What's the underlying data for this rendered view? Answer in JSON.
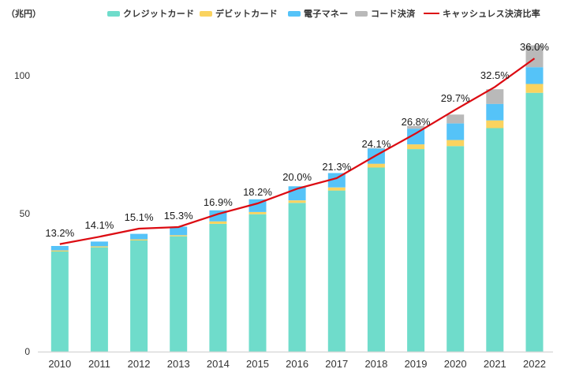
{
  "unit_label": "（兆円）",
  "legend": {
    "items": [
      {
        "label": "クレジットカード",
        "color": "#6FDCCB",
        "swatch": "box"
      },
      {
        "label": "デビットカード",
        "color": "#FAD35F",
        "swatch": "box"
      },
      {
        "label": "電子マネー",
        "color": "#55C3F8",
        "swatch": "box"
      },
      {
        "label": "コード決済",
        "color": "#B9B9B9",
        "swatch": "box"
      },
      {
        "label": "キャッシュレス決済比率",
        "color": "#DC0B12",
        "swatch": "line"
      }
    ]
  },
  "y_axis": {
    "unit": "兆円",
    "ticks": [
      0,
      50,
      100
    ],
    "max": 115
  },
  "x_axis": {
    "tick_labels": [
      "2010",
      "2011",
      "2012",
      "2013",
      "2014",
      "2015",
      "2016",
      "2017",
      "2018",
      "2019",
      "2020",
      "2021",
      "2022"
    ]
  },
  "colors": {
    "credit": "#6FDCCB",
    "debit": "#FAD35F",
    "emoney": "#55C3F8",
    "code": "#B9B9B9",
    "ratio_line": "#DC0B12",
    "axis_line": "#D9D9D9",
    "text": "#333333"
  },
  "chart_data": {
    "type": "bar",
    "subtype": "stacked-bars-with-line-overlay",
    "title": "",
    "categories": [
      "2010",
      "2011",
      "2012",
      "2013",
      "2014",
      "2015",
      "2016",
      "2017",
      "2018",
      "2019",
      "2020",
      "2021",
      "2022"
    ],
    "series": [
      {
        "key": "credit",
        "name": "クレジットカード",
        "color": "#6FDCCB",
        "values": [
          36.3,
          37.8,
          40.3,
          41.8,
          46.3,
          49.8,
          53.9,
          58.4,
          66.7,
          73.4,
          74.5,
          81.0,
          93.8
        ]
      },
      {
        "key": "debit",
        "name": "デビットカード",
        "color": "#FAD35F",
        "values": [
          0.4,
          0.4,
          0.4,
          0.4,
          0.9,
          0.8,
          0.9,
          1.1,
          1.4,
          1.7,
          2.2,
          2.8,
          3.2
        ]
      },
      {
        "key": "emoney",
        "name": "電子マネー",
        "color": "#55C3F8",
        "values": [
          1.6,
          1.7,
          2.0,
          3.1,
          4.0,
          4.6,
          5.1,
          5.2,
          5.5,
          5.7,
          6.0,
          6.0,
          6.1
        ]
      },
      {
        "key": "code",
        "name": "コード決済",
        "color": "#B9B9B9",
        "values": [
          0,
          0,
          0,
          0,
          0,
          0,
          0,
          0,
          0.2,
          1.0,
          3.2,
          5.3,
          7.9
        ]
      }
    ],
    "line_series": {
      "key": "ratio",
      "name": "キャッシュレス決済比率",
      "color": "#DC0B12",
      "unit": "%",
      "values": [
        13.2,
        14.1,
        15.1,
        15.3,
        16.9,
        18.2,
        20.0,
        21.3,
        24.1,
        26.8,
        29.7,
        32.5,
        36.0
      ]
    },
    "xlabel": "",
    "ylabel": "（兆円）",
    "ylim": [
      0,
      115
    ],
    "y_ticks": [
      0,
      50,
      100
    ],
    "grid": false,
    "legend_position": "top"
  }
}
